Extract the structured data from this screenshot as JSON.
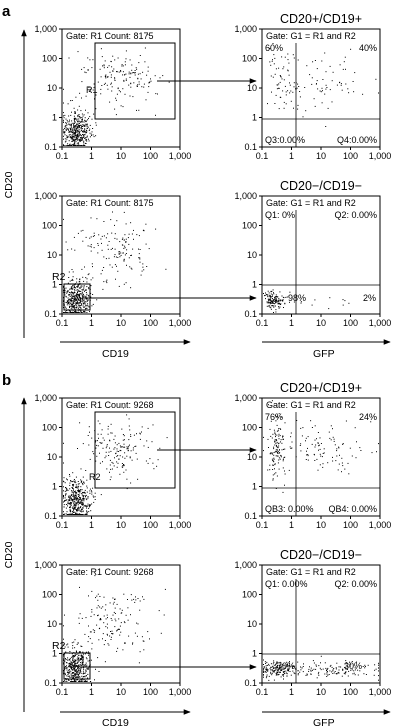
{
  "panel_letters": [
    "a",
    "b"
  ],
  "axis_labels": {
    "y": "CD20",
    "x_left": "CD19",
    "x_right": "GFP"
  },
  "axis_ticks": {
    "y": [
      "1,000",
      "100",
      "10",
      "1",
      "0.1"
    ],
    "x": [
      "0.1",
      "1",
      "10",
      "100",
      "1,000"
    ]
  },
  "colors": {
    "dot": "#000000",
    "frame": "#000000",
    "background": "#ffffff"
  },
  "chart_data": [
    {
      "type": "scatter",
      "panel": "a",
      "position": "top-left",
      "stats": "Gate: R1 Count: 8175",
      "gate_labels": [
        "R1"
      ],
      "xscale": "log",
      "yscale": "log",
      "xlim": [
        0.1,
        1000
      ],
      "ylim": [
        0.1,
        1000
      ]
    },
    {
      "type": "scatter",
      "panel": "a",
      "position": "top-right",
      "title": "CD20+/CD19+",
      "stats": "Gate: G1 = R1 and R2",
      "quadrants": {
        "upper_left": "60%",
        "upper_right": "40%",
        "lower_left": "Q3:0.00%",
        "lower_right": "Q4:0.00%"
      },
      "xscale": "log",
      "yscale": "log",
      "xlim": [
        0.1,
        1000
      ],
      "ylim": [
        0.1,
        1000
      ]
    },
    {
      "type": "scatter",
      "panel": "a",
      "position": "bottom-left",
      "stats": "Gate: R1 Count: 8175",
      "gate_labels": [
        "R2"
      ],
      "xscale": "log",
      "yscale": "log",
      "xlim": [
        0.1,
        1000
      ],
      "ylim": [
        0.1,
        1000
      ]
    },
    {
      "type": "scatter",
      "panel": "a",
      "position": "bottom-right",
      "title": "CD20−/CD19−",
      "stats": "Gate: G1 = R1 and R2",
      "quadrants": {
        "upper_left": "Q1: 0%",
        "upper_right": "Q2: 0.00%",
        "lower_left": "98%",
        "lower_right": "2%"
      },
      "xscale": "log",
      "yscale": "log",
      "xlim": [
        0.1,
        1000
      ],
      "ylim": [
        0.1,
        1000
      ]
    },
    {
      "type": "scatter",
      "panel": "b",
      "position": "top-left",
      "stats": "Gate: R1 Count: 9268",
      "gate_labels": [
        "R2"
      ],
      "xscale": "log",
      "yscale": "log",
      "xlim": [
        0.1,
        1000
      ],
      "ylim": [
        0.1,
        1000
      ]
    },
    {
      "type": "scatter",
      "panel": "b",
      "position": "top-right",
      "title": "CD20+/CD19+",
      "stats": "Gate: G1 = R1 and R2",
      "quadrants": {
        "upper_left": "76%",
        "upper_right": "24%",
        "lower_left": "QB3: 0.00%",
        "lower_right": "QB4: 0.00%"
      },
      "xscale": "log",
      "yscale": "log",
      "xlim": [
        0.1,
        1000
      ],
      "ylim": [
        0.1,
        1000
      ]
    },
    {
      "type": "scatter",
      "panel": "b",
      "position": "bottom-left",
      "stats": "Gate: R1 Count: 9268",
      "gate_labels": [
        "R2"
      ],
      "xscale": "log",
      "yscale": "log",
      "xlim": [
        0.1,
        1000
      ],
      "ylim": [
        0.1,
        1000
      ]
    },
    {
      "type": "scatter",
      "panel": "b",
      "position": "bottom-right",
      "title": "CD20−/CD19−",
      "stats": "Gate: G1 = R1 and R2",
      "quadrants": {
        "upper_left": "Q1: 0.00%",
        "upper_right": "Q2: 0.00%",
        "lower_left": "70%",
        "lower_right": "30%"
      },
      "xscale": "log",
      "yscale": "log",
      "xlim": [
        0.1,
        1000
      ],
      "ylim": [
        0.1,
        1000
      ]
    }
  ]
}
